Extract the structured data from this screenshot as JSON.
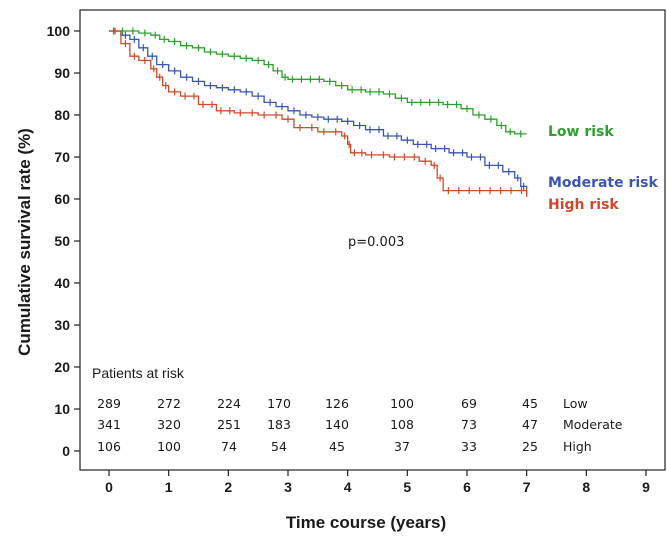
{
  "chart_data": {
    "type": "line",
    "title": "",
    "xlabel": "Time course (years)",
    "ylabel": "Cumulative survival rate (%)",
    "xlim": [
      -0.3,
      9.3
    ],
    "ylim": [
      0,
      100
    ],
    "x_ticks": [
      0,
      1,
      2,
      3,
      4,
      5,
      6,
      7,
      8,
      9
    ],
    "y_ticks": [
      0,
      10,
      20,
      30,
      40,
      50,
      60,
      70,
      80,
      90,
      100
    ],
    "grid": false,
    "legend": "labels at right end of curves",
    "annotation": "p=0.003",
    "series": [
      {
        "name": "Low risk",
        "color": "#2ca02c",
        "steps": [
          [
            0,
            100
          ],
          [
            0.3,
            100
          ],
          [
            0.5,
            99.5
          ],
          [
            0.7,
            99
          ],
          [
            0.85,
            98
          ],
          [
            1.0,
            97.5
          ],
          [
            1.2,
            96.5
          ],
          [
            1.4,
            96
          ],
          [
            1.6,
            95
          ],
          [
            1.8,
            94.5
          ],
          [
            2.0,
            94
          ],
          [
            2.2,
            93.5
          ],
          [
            2.4,
            93
          ],
          [
            2.6,
            92
          ],
          [
            2.75,
            90.5
          ],
          [
            2.9,
            89
          ],
          [
            3.0,
            88.5
          ],
          [
            3.6,
            88
          ],
          [
            3.8,
            87
          ],
          [
            4.0,
            86
          ],
          [
            4.3,
            85.5
          ],
          [
            4.6,
            85
          ],
          [
            4.8,
            84
          ],
          [
            5.0,
            83
          ],
          [
            5.6,
            82.5
          ],
          [
            5.9,
            81.5
          ],
          [
            6.1,
            80
          ],
          [
            6.3,
            79
          ],
          [
            6.5,
            77.5
          ],
          [
            6.65,
            76
          ],
          [
            6.8,
            75.5
          ],
          [
            7.0,
            75.5
          ]
        ]
      },
      {
        "name": "Moderate risk",
        "color": "#3c55b5",
        "steps": [
          [
            0,
            100
          ],
          [
            0.2,
            99
          ],
          [
            0.35,
            98
          ],
          [
            0.5,
            96
          ],
          [
            0.65,
            94
          ],
          [
            0.8,
            92
          ],
          [
            1.0,
            90.5
          ],
          [
            1.2,
            89
          ],
          [
            1.4,
            88
          ],
          [
            1.6,
            87
          ],
          [
            1.8,
            86.5
          ],
          [
            2.0,
            86
          ],
          [
            2.2,
            85.5
          ],
          [
            2.4,
            84.5
          ],
          [
            2.6,
            83
          ],
          [
            2.8,
            82
          ],
          [
            3.0,
            81
          ],
          [
            3.2,
            80
          ],
          [
            3.4,
            79.5
          ],
          [
            3.6,
            79
          ],
          [
            3.9,
            78.5
          ],
          [
            4.1,
            77.5
          ],
          [
            4.3,
            76.5
          ],
          [
            4.6,
            75
          ],
          [
            4.9,
            74
          ],
          [
            5.1,
            73
          ],
          [
            5.4,
            72
          ],
          [
            5.7,
            71
          ],
          [
            6.0,
            70
          ],
          [
            6.3,
            68
          ],
          [
            6.6,
            66.5
          ],
          [
            6.8,
            65
          ],
          [
            6.9,
            63
          ],
          [
            7.0,
            62.5
          ]
        ]
      },
      {
        "name": "High risk",
        "color": "#d04a2a",
        "steps": [
          [
            0,
            100
          ],
          [
            0.2,
            97
          ],
          [
            0.35,
            94
          ],
          [
            0.5,
            93
          ],
          [
            0.7,
            91
          ],
          [
            0.8,
            89
          ],
          [
            0.9,
            87
          ],
          [
            1.0,
            85.5
          ],
          [
            1.2,
            84.5
          ],
          [
            1.5,
            82.5
          ],
          [
            1.8,
            81
          ],
          [
            2.1,
            80.5
          ],
          [
            2.5,
            80
          ],
          [
            2.9,
            79
          ],
          [
            3.1,
            77
          ],
          [
            3.5,
            76
          ],
          [
            3.9,
            75
          ],
          [
            4.0,
            73
          ],
          [
            4.05,
            71
          ],
          [
            4.3,
            70.5
          ],
          [
            4.7,
            70
          ],
          [
            5.2,
            69
          ],
          [
            5.4,
            68
          ],
          [
            5.5,
            65
          ],
          [
            5.6,
            62
          ],
          [
            7.0,
            62
          ],
          [
            7.0,
            60.5
          ]
        ]
      }
    ],
    "risk_table": {
      "header": "Patients at risk",
      "times": [
        0,
        1,
        2,
        3,
        4,
        5,
        6,
        7
      ],
      "rows": [
        {
          "label": "Low",
          "values": [
            "289",
            "272",
            "224",
            "170",
            "126",
            "100",
            "69",
            "45"
          ]
        },
        {
          "label": "Moderate",
          "values": [
            "341",
            "320",
            "251",
            "183",
            "140",
            "108",
            "73",
            "47"
          ]
        },
        {
          "label": "High",
          "values": [
            "106",
            "100",
            "74",
            "54",
            "45",
            "37",
            "33",
            "25"
          ]
        }
      ]
    }
  }
}
